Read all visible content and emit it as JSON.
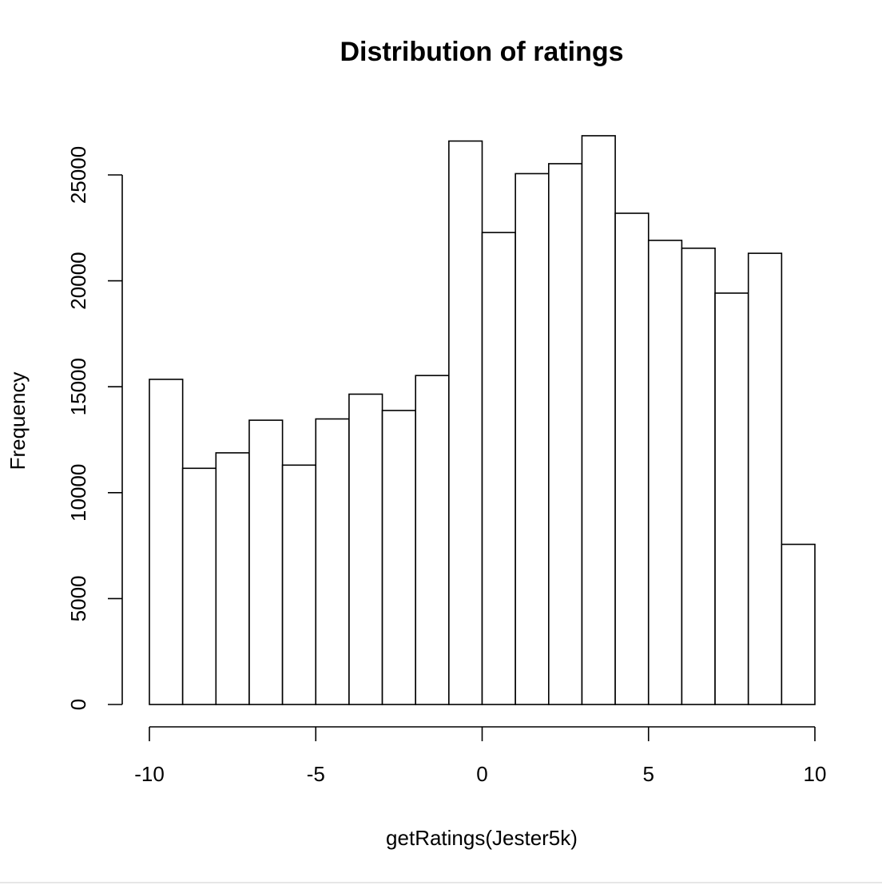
{
  "chart_data": {
    "type": "bar",
    "title": "Distribution of ratings",
    "xlabel": "getRatings(Jester5k)",
    "ylabel": "Frequency",
    "bin_edges": [
      -10,
      -9,
      -8,
      -7,
      -6,
      -5,
      -4,
      -3,
      -2,
      -1,
      0,
      1,
      2,
      3,
      4,
      5,
      6,
      7,
      8,
      9,
      10
    ],
    "values": [
      15350,
      11150,
      11880,
      13420,
      11300,
      13480,
      14650,
      13880,
      15530,
      26600,
      22280,
      25060,
      25530,
      26850,
      23190,
      21910,
      21540,
      19420,
      21300,
      7560
    ],
    "xlim": [
      -10,
      10
    ],
    "ylim": [
      0,
      25000
    ],
    "x_ticks": [
      -10,
      -5,
      0,
      5,
      10
    ],
    "x_tick_labels": [
      "-10",
      "-5",
      "0",
      "5",
      "10"
    ],
    "y_ticks": [
      0,
      5000,
      10000,
      15000,
      20000,
      25000
    ],
    "y_tick_labels": [
      "0",
      "5000",
      "10000",
      "15000",
      "20000",
      "25000"
    ],
    "grid": false,
    "bar_fill": "#ffffff",
    "bar_stroke": "#000000"
  }
}
